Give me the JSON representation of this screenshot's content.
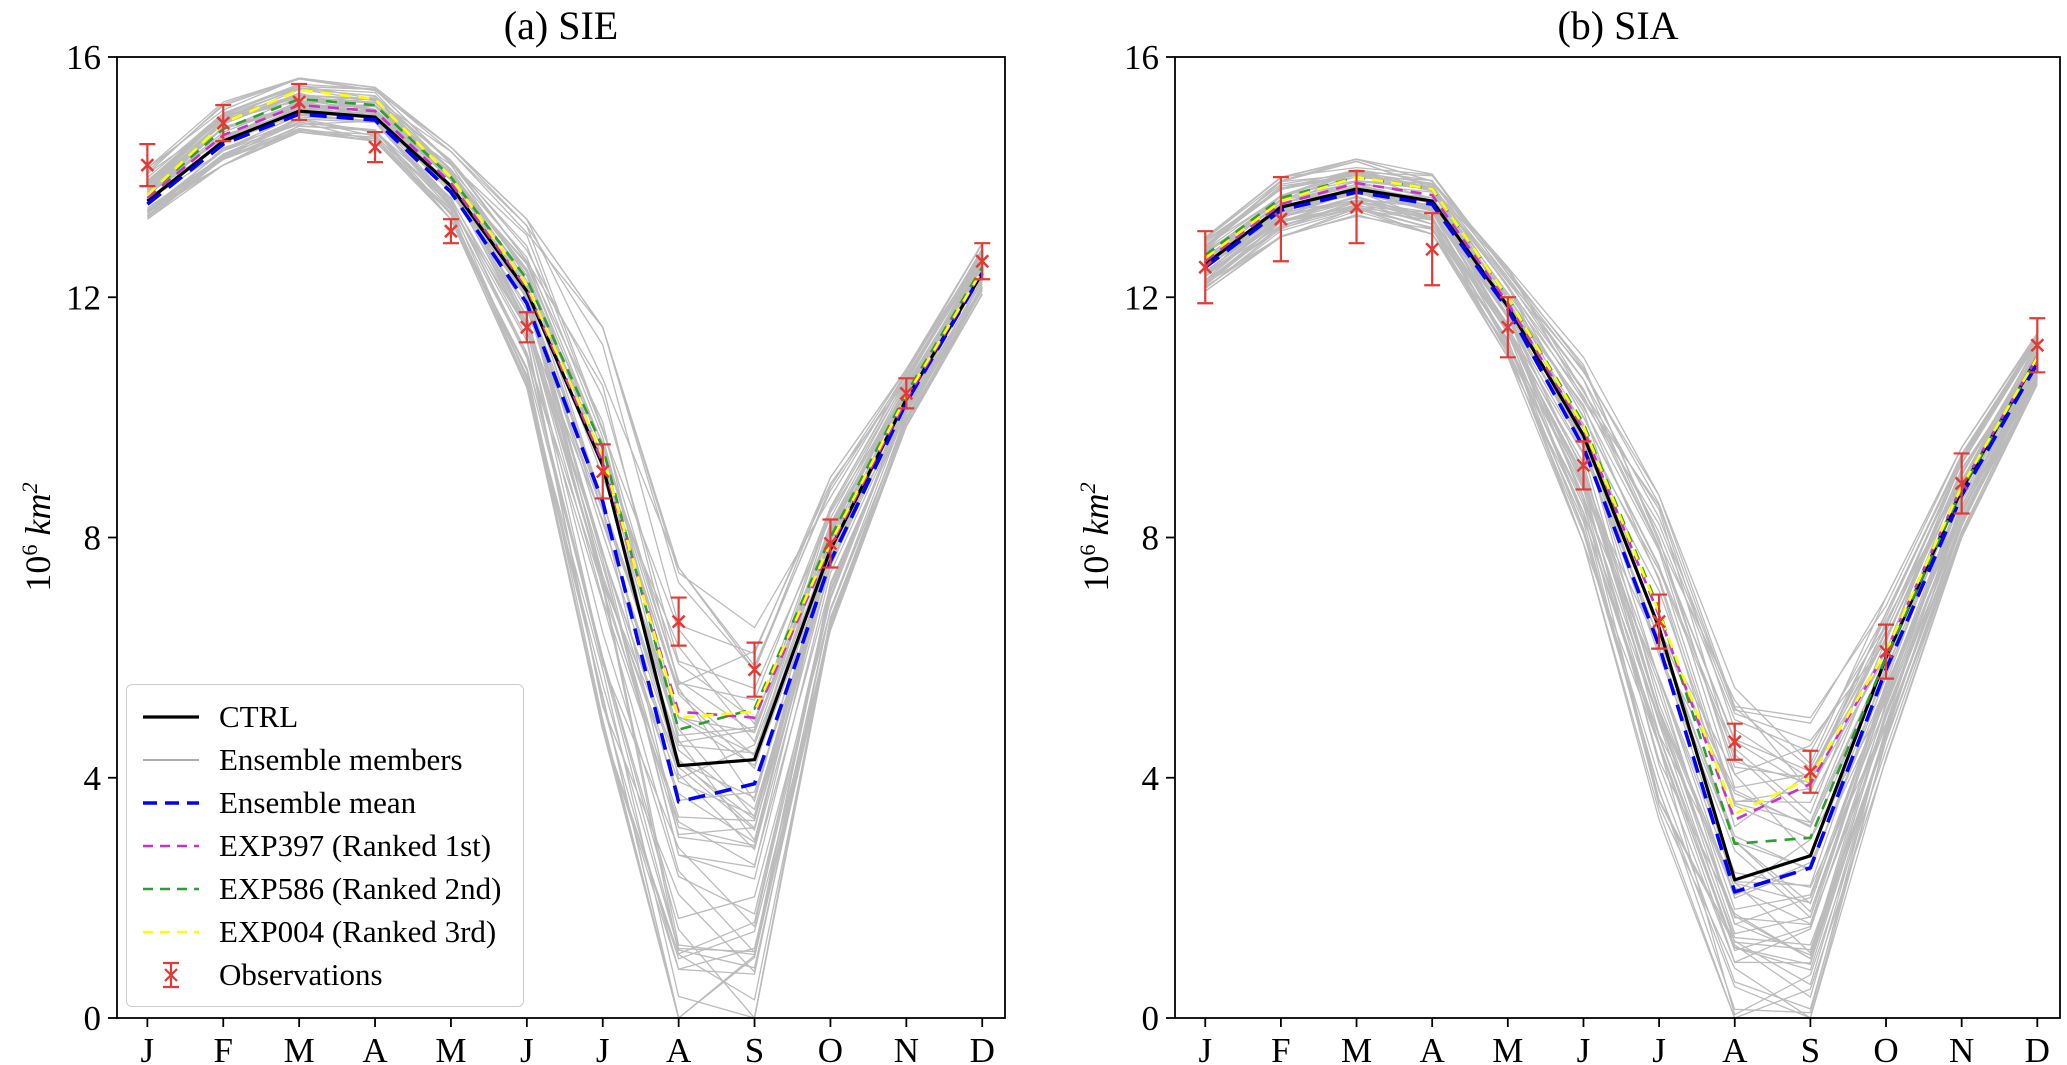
{
  "figure": {
    "background": "#ffffff"
  },
  "chart_data": {
    "type": "line",
    "months": [
      "J",
      "F",
      "M",
      "A",
      "M",
      "J",
      "J",
      "A",
      "S",
      "O",
      "N",
      "D"
    ],
    "yticks": [
      "0",
      "4",
      "8",
      "12",
      "16"
    ],
    "ylim": [
      0,
      16
    ],
    "ylabel": {
      "base": "10",
      "exp": "6",
      "unit": "km",
      "unit_exp": "2"
    },
    "colors": {
      "ctrl": "#000000",
      "members": "#ababab",
      "mean": "#0000ff",
      "exp397": "#c832c8",
      "exp586": "#2f9e2f",
      "exp004": "#ffff00",
      "observations": "#e23b36",
      "axis": "#000000"
    },
    "legend": {
      "position": "lower-left-panel-a",
      "entries": [
        {
          "label": "CTRL",
          "color": "#000000",
          "dash": "solid",
          "width": 3.2,
          "sample": "line"
        },
        {
          "label": "Ensemble members",
          "color": "#ababab",
          "dash": "solid",
          "width": 2.0,
          "sample": "line"
        },
        {
          "label": "Ensemble mean",
          "color": "#0000ff",
          "dash": "dashed",
          "width": 3.6,
          "sample": "line"
        },
        {
          "label": "EXP397 (Ranked 1st)",
          "color": "#c832c8",
          "dash": "dashed",
          "width": 2.6,
          "sample": "line"
        },
        {
          "label": "EXP586 (Ranked 2nd)",
          "color": "#2f9e2f",
          "dash": "dashed",
          "width": 2.6,
          "sample": "line"
        },
        {
          "label": "EXP004 (Ranked 3rd)",
          "color": "#ffff00",
          "dash": "dashed",
          "width": 2.6,
          "sample": "line"
        },
        {
          "label": "Observations",
          "color": "#e23b36",
          "sample": "errorbar"
        }
      ]
    },
    "panels": [
      {
        "title": "(a) SIE",
        "series": [
          {
            "name": "CTRL",
            "color": "#000000",
            "style": "solid",
            "width": 3.2,
            "values": [
              13.6,
              14.6,
              15.1,
              15.0,
              13.85,
              12.1,
              9.2,
              4.2,
              4.3,
              7.8,
              10.3,
              12.4
            ]
          },
          {
            "name": "Ensemble mean",
            "color": "#0000ff",
            "style": "dashed",
            "width": 3.6,
            "values": [
              13.55,
              14.55,
              15.05,
              14.95,
              13.75,
              11.9,
              8.6,
              3.6,
              3.9,
              7.6,
              10.25,
              12.4
            ]
          },
          {
            "name": "EXP586 (Ranked 2nd)",
            "color": "#2f9e2f",
            "style": "dashed",
            "width": 2.6,
            "values": [
              13.7,
              14.8,
              15.3,
              15.2,
              14.0,
              12.3,
              9.5,
              4.8,
              5.15,
              8.0,
              10.4,
              12.5
            ]
          },
          {
            "name": "EXP397 (Ranked 1st)",
            "color": "#c832c8",
            "style": "dashed",
            "width": 2.6,
            "values": [
              13.65,
              14.7,
              15.2,
              15.1,
              13.9,
              12.15,
              9.25,
              5.1,
              5.0,
              7.85,
              10.3,
              12.45
            ]
          },
          {
            "name": "EXP004 (Ranked 3rd)",
            "color": "#ffff00",
            "style": "dashed",
            "width": 2.6,
            "values": [
              13.7,
              14.9,
              15.45,
              15.3,
              14.0,
              12.2,
              9.35,
              5.0,
              5.1,
              7.9,
              10.35,
              12.45
            ]
          }
        ],
        "observations": {
          "color": "#e23b36",
          "values": [
            14.2,
            14.9,
            15.25,
            14.5,
            13.1,
            11.5,
            9.1,
            6.6,
            5.8,
            7.9,
            10.4,
            12.6
          ],
          "errors": [
            0.35,
            0.3,
            0.3,
            0.25,
            0.2,
            0.25,
            0.45,
            0.4,
            0.45,
            0.4,
            0.25,
            0.3
          ]
        },
        "ensemble": {
          "count": 60,
          "min": [
            13.3,
            14.2,
            14.75,
            14.6,
            13.3,
            10.5,
            4.8,
            0.0,
            0.0,
            6.4,
            9.85,
            12.05
          ],
          "max": [
            14.15,
            15.25,
            15.65,
            15.55,
            14.5,
            13.3,
            11.5,
            7.5,
            6.5,
            9.0,
            10.8,
            12.9
          ]
        }
      },
      {
        "title": "(b) SIA",
        "series": [
          {
            "name": "CTRL",
            "color": "#000000",
            "style": "solid",
            "width": 3.2,
            "values": [
              12.55,
              13.5,
              13.8,
              13.6,
              11.85,
              9.7,
              6.5,
              2.3,
              2.7,
              6.0,
              8.8,
              11.0
            ]
          },
          {
            "name": "Ensemble mean",
            "color": "#0000ff",
            "style": "dashed",
            "width": 3.6,
            "values": [
              12.5,
              13.45,
              13.75,
              13.55,
              11.8,
              9.5,
              6.2,
              2.1,
              2.5,
              5.8,
              8.7,
              10.9
            ]
          },
          {
            "name": "EXP586 (Ranked 2nd)",
            "color": "#2f9e2f",
            "style": "dashed",
            "width": 2.6,
            "values": [
              12.7,
              13.65,
              14.0,
              13.8,
              12.0,
              9.9,
              6.8,
              2.9,
              3.0,
              6.0,
              8.8,
              11.0
            ]
          },
          {
            "name": "EXP397 (Ranked 1st)",
            "color": "#c832c8",
            "style": "dashed",
            "width": 2.6,
            "values": [
              12.6,
              13.55,
              13.9,
              13.7,
              11.9,
              9.8,
              6.7,
              3.3,
              3.9,
              6.1,
              8.85,
              11.0
            ]
          },
          {
            "name": "EXP004 (Ranked 3rd)",
            "color": "#ffff00",
            "style": "dashed",
            "width": 2.6,
            "values": [
              12.65,
              13.6,
              14.0,
              13.8,
              12.0,
              9.85,
              6.75,
              3.4,
              4.0,
              6.1,
              8.85,
              11.0
            ]
          }
        ],
        "observations": {
          "color": "#e23b36",
          "values": [
            12.5,
            13.3,
            13.5,
            12.8,
            11.5,
            9.2,
            6.6,
            4.6,
            4.1,
            6.1,
            8.9,
            11.2
          ],
          "errors": [
            0.6,
            0.7,
            0.6,
            0.6,
            0.5,
            0.4,
            0.45,
            0.3,
            0.35,
            0.45,
            0.5,
            0.45
          ]
        },
        "ensemble": {
          "count": 60,
          "min": [
            12.1,
            13.0,
            13.35,
            13.05,
            11.0,
            7.9,
            3.3,
            0.0,
            0.0,
            4.3,
            8.0,
            10.55
          ],
          "max": [
            13.0,
            14.0,
            14.3,
            14.05,
            12.5,
            11.0,
            8.7,
            5.5,
            5.0,
            7.0,
            9.5,
            11.4
          ]
        }
      }
    ]
  }
}
